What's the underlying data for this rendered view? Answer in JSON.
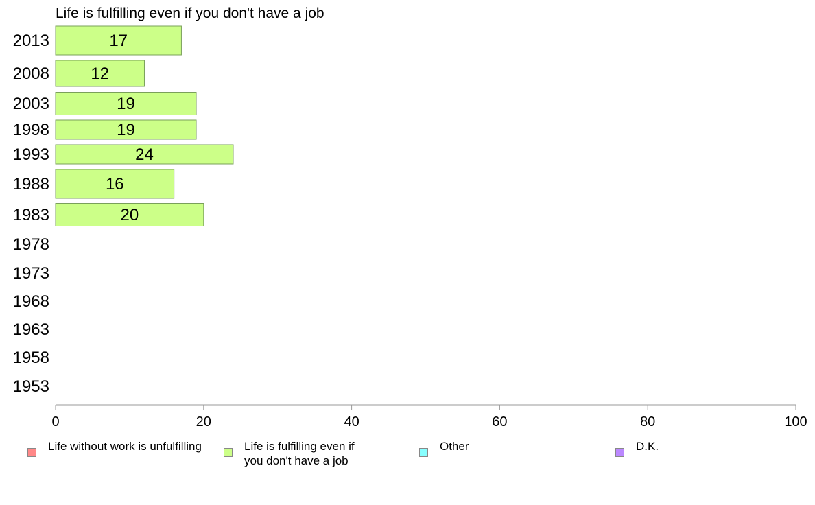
{
  "chart_data": {
    "type": "bar",
    "orientation": "horizontal",
    "title": "Life is fulfilling even if you don't have a job",
    "categories": [
      "2013",
      "2008",
      "2003",
      "1998",
      "1993",
      "1988",
      "1983",
      "1978",
      "1973",
      "1968",
      "1963",
      "1958",
      "1953"
    ],
    "series": [
      {
        "name": "Life is fulfilling even if you don't have a job",
        "values": [
          17,
          12,
          19,
          19,
          24,
          16,
          20,
          null,
          null,
          null,
          null,
          null,
          null
        ],
        "color": "#ccff88"
      }
    ],
    "xlim": [
      0,
      100
    ],
    "xticks": [
      "0",
      "20",
      "40",
      "60",
      "80",
      "100"
    ],
    "grid": false,
    "legend_placement": "bottom",
    "legend": [
      {
        "label": "Life without work is unfulfilling",
        "color": "#ff8888"
      },
      {
        "label": "Life is fulfilling even if you don't have a job",
        "label_lines": [
          "Life is fulfilling even if",
          "you don't have a job"
        ],
        "color": "#ccff88"
      },
      {
        "label": "Other",
        "color": "#88ffff"
      },
      {
        "label": "D.K.",
        "color": "#bb88ff"
      }
    ]
  }
}
